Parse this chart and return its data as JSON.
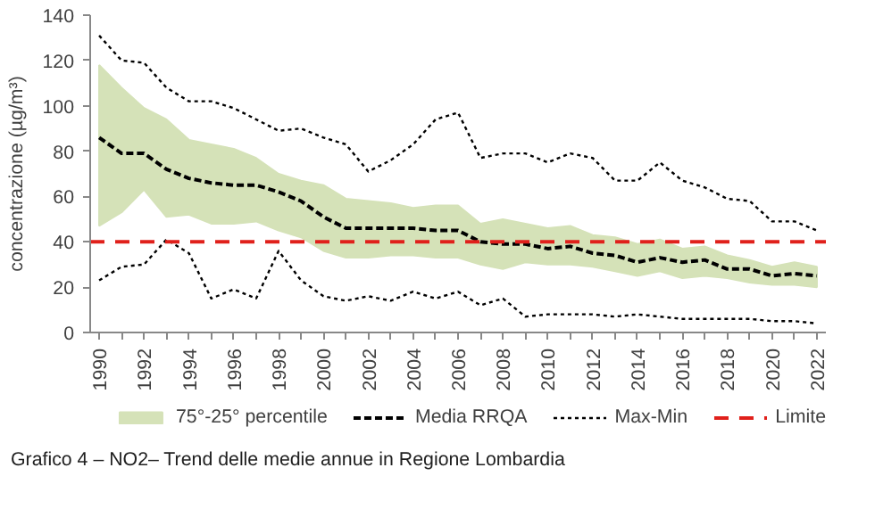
{
  "chart_data": {
    "type": "line",
    "ylabel": "concentrazione (µg/m³)",
    "annotations": [
      "Grafico 4 – NO2– Trend delle medie annue in Regione Lombardia"
    ],
    "x": [
      1990,
      1991,
      1992,
      1993,
      1994,
      1995,
      1996,
      1997,
      1998,
      1999,
      2000,
      2001,
      2002,
      2003,
      2004,
      2005,
      2006,
      2007,
      2008,
      2009,
      2010,
      2011,
      2012,
      2013,
      2014,
      2015,
      2016,
      2017,
      2018,
      2019,
      2020,
      2021,
      2022
    ],
    "xlim": [
      1989.6,
      2022.4
    ],
    "xticks": [
      1990,
      {
        "value": 1991,
        "label": null
      },
      1992,
      {
        "value": 1993,
        "label": null
      },
      1994,
      {
        "value": 1995,
        "label": null
      },
      1996,
      {
        "value": 1997,
        "label": null
      },
      1998,
      {
        "value": 1999,
        "label": null
      },
      2000,
      {
        "value": 2001,
        "label": null
      },
      2002,
      {
        "value": 2003,
        "label": null
      },
      2004,
      {
        "value": 2005,
        "label": null
      },
      2006,
      {
        "value": 2007,
        "label": null
      },
      2008,
      {
        "value": 2009,
        "label": null
      },
      2010,
      {
        "value": 2011,
        "label": null
      },
      2012,
      {
        "value": 2013,
        "label": null
      },
      2014,
      {
        "value": 2015,
        "label": null
      },
      2016,
      {
        "value": 2017,
        "label": null
      },
      2018,
      {
        "value": 2019,
        "label": null
      },
      2020,
      {
        "value": 2021,
        "label": null
      },
      2022
    ],
    "ylim": [
      0,
      140
    ],
    "yticks": [
      0,
      20,
      40,
      60,
      80,
      100,
      120,
      140
    ],
    "grid": false,
    "legend": "bottom",
    "series": [
      {
        "name": "75°-25° percentile",
        "type": "area",
        "color": "#d5e2b8",
        "values": [
          null,
          null,
          null,
          null,
          null,
          null,
          null,
          null,
          null,
          null,
          null,
          null,
          null,
          null,
          null,
          null,
          null,
          null,
          null,
          null,
          null,
          null,
          null,
          null,
          null,
          null,
          null,
          null,
          null,
          null,
          null,
          null,
          null
        ],
        "upper": [
          118,
          108,
          99,
          94,
          85,
          83,
          81,
          77,
          70,
          67,
          65,
          59,
          58,
          57,
          55,
          56,
          56,
          48,
          50,
          48,
          46,
          47,
          43,
          42,
          39,
          41,
          37,
          38,
          34,
          32,
          29,
          31,
          29
        ],
        "lower": [
          47,
          53,
          63,
          51,
          52,
          48,
          48,
          49,
          45,
          42,
          36,
          33,
          33,
          34,
          34,
          33,
          33,
          30,
          28,
          31,
          30,
          30,
          29,
          27,
          25,
          27,
          24,
          25,
          24,
          22,
          21,
          21,
          20
        ]
      },
      {
        "name": "Media RRQA",
        "line_style": "dashed",
        "color": "#000000",
        "values": [
          86,
          79,
          79,
          72,
          68,
          66,
          65,
          65,
          62,
          58,
          51,
          46,
          46,
          46,
          46,
          45,
          45,
          40,
          39,
          39,
          37,
          38,
          35,
          34,
          31,
          33,
          31,
          32,
          28,
          28,
          25,
          26,
          25
        ]
      },
      {
        "name": "Max-Min",
        "line_style": "dotted",
        "color": "#000000",
        "values": [
          131,
          120,
          119,
          108,
          102,
          102,
          99,
          94,
          89,
          90,
          86,
          83,
          71,
          76,
          83,
          94,
          97,
          77,
          79,
          79,
          75,
          79,
          77,
          67,
          67,
          75,
          67,
          64,
          59,
          58,
          49,
          49,
          45
        ]
      },
      {
        "line_style": "dotted",
        "color": "#000000",
        "values": [
          23,
          29,
          30,
          41,
          35,
          15,
          19,
          15,
          36,
          23,
          16,
          14,
          16,
          14,
          18,
          15,
          18,
          12,
          15,
          7,
          8,
          8,
          8,
          7,
          8,
          7,
          6,
          6,
          6,
          6,
          5,
          5,
          4
        ]
      }
    ],
    "ref_lines": [
      {
        "axis": "y",
        "value": 40,
        "label": "Limite",
        "color": "#e0201b",
        "line_style": "dashed"
      }
    ]
  }
}
